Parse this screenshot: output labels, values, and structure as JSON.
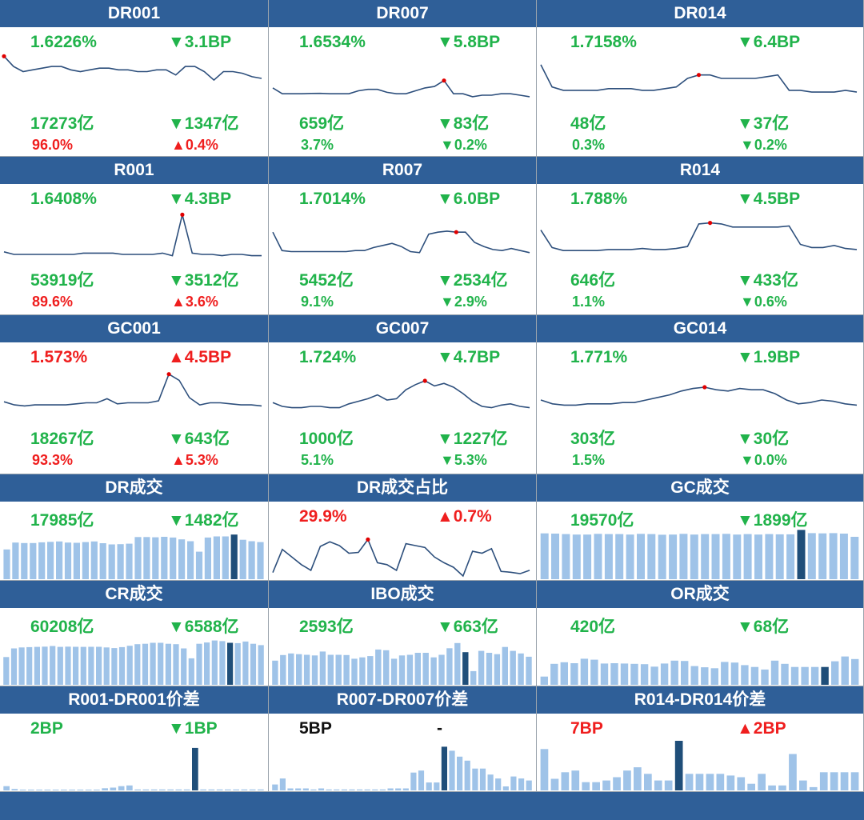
{
  "colors": {
    "header": "#2f5f98",
    "up": "#ef1e1e",
    "down": "#21b34b",
    "line": "#2d4f7c",
    "bar": "#9fc3e8",
    "bar_highlight": "#1f4e79",
    "marker": "#e00000"
  },
  "rate_panels": [
    {
      "title": "DR001",
      "rate": "1.6226%",
      "rate_color": "g",
      "change": "▼3.1BP",
      "change_color": "g",
      "volume": "17273亿",
      "vol_change": "▼1347亿",
      "vol_change_color": "g",
      "share": "96.0%",
      "share_color": "r",
      "share_change": "▲0.4%",
      "share_change_color": "r"
    },
    {
      "title": "DR007",
      "rate": "1.6534%",
      "rate_color": "g",
      "change": "▼5.8BP",
      "change_color": "g",
      "volume": "659亿",
      "vol_change": "▼83亿",
      "vol_change_color": "g",
      "share": "3.7%",
      "share_color": "g",
      "share_change": "▼0.2%",
      "share_change_color": "g"
    },
    {
      "title": "DR014",
      "rate": "1.7158%",
      "rate_color": "g",
      "change": "▼6.4BP",
      "change_color": "g",
      "volume": "48亿",
      "vol_change": "▼37亿",
      "vol_change_color": "g",
      "share": "0.3%",
      "share_color": "g",
      "share_change": "▼0.2%",
      "share_change_color": "g"
    },
    {
      "title": "R001",
      "rate": "1.6408%",
      "rate_color": "g",
      "change": "▼4.3BP",
      "change_color": "g",
      "volume": "53919亿",
      "vol_change": "▼3512亿",
      "vol_change_color": "g",
      "share": "89.6%",
      "share_color": "r",
      "share_change": "▲3.6%",
      "share_change_color": "r"
    },
    {
      "title": "R007",
      "rate": "1.7014%",
      "rate_color": "g",
      "change": "▼6.0BP",
      "change_color": "g",
      "volume": "5452亿",
      "vol_change": "▼2534亿",
      "vol_change_color": "g",
      "share": "9.1%",
      "share_color": "g",
      "share_change": "▼2.9%",
      "share_change_color": "g"
    },
    {
      "title": "R014",
      "rate": "1.788%",
      "rate_color": "g",
      "change": "▼4.5BP",
      "change_color": "g",
      "volume": "646亿",
      "vol_change": "▼433亿",
      "vol_change_color": "g",
      "share": "1.1%",
      "share_color": "g",
      "share_change": "▼0.6%",
      "share_change_color": "g"
    },
    {
      "title": "GC001",
      "rate": "1.573%",
      "rate_color": "r",
      "change": "▲4.5BP",
      "change_color": "r",
      "volume": "18267亿",
      "vol_change": "▼643亿",
      "vol_change_color": "g",
      "share": "93.3%",
      "share_color": "r",
      "share_change": "▲5.3%",
      "share_change_color": "r"
    },
    {
      "title": "GC007",
      "rate": "1.724%",
      "rate_color": "g",
      "change": "▼4.7BP",
      "change_color": "g",
      "volume": "1000亿",
      "vol_change": "▼1227亿",
      "vol_change_color": "g",
      "share": "5.1%",
      "share_color": "g",
      "share_change": "▼5.3%",
      "share_change_color": "g"
    },
    {
      "title": "GC014",
      "rate": "1.771%",
      "rate_color": "g",
      "change": "▼1.9BP",
      "change_color": "g",
      "volume": "303亿",
      "vol_change": "▼30亿",
      "vol_change_color": "g",
      "share": "1.5%",
      "share_color": "g",
      "share_change": "▼0.0%",
      "share_change_color": "g"
    }
  ],
  "volume_panels": [
    {
      "title": "DR成交",
      "value": "17985亿",
      "value_color": "g",
      "change": "▼1482亿",
      "change_color": "g"
    },
    {
      "title": "DR成交占比",
      "value": "29.9%",
      "value_color": "r",
      "change": "▲0.7%",
      "change_color": "r"
    },
    {
      "title": "GC成交",
      "value": "19570亿",
      "value_color": "g",
      "change": "▼1899亿",
      "change_color": "g"
    },
    {
      "title": "CR成交",
      "value": "60208亿",
      "value_color": "g",
      "change": "▼6588亿",
      "change_color": "g"
    },
    {
      "title": "IBO成交",
      "value": "2593亿",
      "value_color": "g",
      "change": "▼663亿",
      "change_color": "g"
    },
    {
      "title": "OR成交",
      "value": "420亿",
      "value_color": "g",
      "change": "▼68亿",
      "change_color": "g"
    },
    {
      "title": "R001-DR001价差",
      "value": "2BP",
      "value_color": "g",
      "change": "▼1BP",
      "change_color": "g"
    },
    {
      "title": "R007-DR007价差",
      "value": "5BP",
      "value_color": "k",
      "change": "-",
      "change_color": "k"
    },
    {
      "title": "R014-DR014价差",
      "value": "7BP",
      "value_color": "r",
      "change": "▲2BP",
      "change_color": "r"
    }
  ],
  "chart_data": [
    {
      "type": "line",
      "title": "DR001",
      "ylim": [
        1.5,
        1.8
      ],
      "values": [
        1.78,
        1.72,
        1.69,
        1.7,
        1.71,
        1.72,
        1.72,
        1.7,
        1.69,
        1.7,
        1.71,
        1.71,
        1.7,
        1.7,
        1.69,
        1.69,
        1.7,
        1.7,
        1.67,
        1.72,
        1.72,
        1.69,
        1.64,
        1.69,
        1.69,
        1.68,
        1.66,
        1.65
      ],
      "highlight_index": 0
    },
    {
      "type": "line",
      "title": "DR007",
      "ylim": [
        1.6,
        1.95
      ],
      "values": [
        1.71,
        1.67,
        1.67,
        1.67,
        1.672,
        1.673,
        1.67,
        1.67,
        1.67,
        1.69,
        1.7,
        1.7,
        1.68,
        1.67,
        1.67,
        1.69,
        1.71,
        1.72,
        1.76,
        1.67,
        1.67,
        1.65,
        1.66,
        1.66,
        1.67,
        1.67,
        1.66,
        1.65
      ],
      "highlight_index": 18
    },
    {
      "type": "line",
      "title": "DR014",
      "ylim": [
        1.65,
        1.95
      ],
      "values": [
        1.88,
        1.75,
        1.73,
        1.73,
        1.73,
        1.73,
        1.74,
        1.74,
        1.74,
        1.73,
        1.73,
        1.74,
        1.75,
        1.8,
        1.82,
        1.82,
        1.8,
        1.8,
        1.8,
        1.8,
        1.81,
        1.82,
        1.73,
        1.73,
        1.72,
        1.72,
        1.72,
        1.73,
        1.72
      ],
      "highlight_index": 14
    },
    {
      "type": "line",
      "title": "R001",
      "ylim": [
        1.6,
        2.0
      ],
      "values": [
        1.67,
        1.65,
        1.65,
        1.65,
        1.65,
        1.65,
        1.65,
        1.65,
        1.66,
        1.66,
        1.66,
        1.66,
        1.65,
        1.65,
        1.65,
        1.65,
        1.66,
        1.64,
        1.96,
        1.66,
        1.65,
        1.65,
        1.64,
        1.65,
        1.65,
        1.64,
        1.64
      ],
      "highlight_index": 18
    },
    {
      "type": "line",
      "title": "R007",
      "ylim": [
        1.6,
        2.1
      ],
      "values": [
        1.88,
        1.7,
        1.69,
        1.69,
        1.69,
        1.69,
        1.69,
        1.69,
        1.69,
        1.7,
        1.7,
        1.73,
        1.75,
        1.77,
        1.74,
        1.69,
        1.68,
        1.86,
        1.88,
        1.89,
        1.88,
        1.88,
        1.78,
        1.74,
        1.71,
        1.7,
        1.72,
        1.7,
        1.68
      ],
      "highlight_index": 20
    },
    {
      "type": "line",
      "title": "R014",
      "ylim": [
        1.6,
        2.1
      ],
      "values": [
        1.9,
        1.73,
        1.7,
        1.7,
        1.7,
        1.7,
        1.71,
        1.71,
        1.71,
        1.72,
        1.71,
        1.71,
        1.72,
        1.74,
        1.96,
        1.97,
        1.96,
        1.93,
        1.93,
        1.93,
        1.93,
        1.93,
        1.94,
        1.76,
        1.73,
        1.73,
        1.75,
        1.72,
        1.71
      ],
      "highlight_index": 15
    },
    {
      "type": "line",
      "title": "GC001",
      "ylim": [
        1.5,
        2.0
      ],
      "values": [
        1.67,
        1.64,
        1.63,
        1.64,
        1.64,
        1.64,
        1.64,
        1.65,
        1.66,
        1.66,
        1.7,
        1.65,
        1.66,
        1.66,
        1.66,
        1.68,
        1.94,
        1.88,
        1.71,
        1.64,
        1.66,
        1.66,
        1.65,
        1.64,
        1.64,
        1.63
      ],
      "highlight_index": 16
    },
    {
      "type": "line",
      "title": "GC007",
      "ylim": [
        1.6,
        2.0
      ],
      "values": [
        1.73,
        1.7,
        1.69,
        1.69,
        1.7,
        1.7,
        1.69,
        1.69,
        1.72,
        1.74,
        1.76,
        1.79,
        1.75,
        1.76,
        1.83,
        1.87,
        1.9,
        1.86,
        1.88,
        1.85,
        1.8,
        1.74,
        1.7,
        1.69,
        1.71,
        1.72,
        1.7,
        1.69
      ],
      "highlight_index": 16
    },
    {
      "type": "line",
      "title": "GC014",
      "ylim": [
        1.6,
        2.0
      ],
      "values": [
        1.75,
        1.72,
        1.71,
        1.71,
        1.72,
        1.72,
        1.72,
        1.73,
        1.73,
        1.75,
        1.77,
        1.79,
        1.82,
        1.84,
        1.85,
        1.83,
        1.82,
        1.84,
        1.83,
        1.83,
        1.8,
        1.75,
        1.72,
        1.73,
        1.75,
        1.74,
        1.72,
        1.71
      ],
      "highlight_index": 14
    },
    {
      "type": "bar",
      "title": "DR成交",
      "ylim": [
        0,
        22000
      ],
      "values": [
        13000,
        16000,
        15800,
        15800,
        16100,
        16300,
        16500,
        16000,
        15900,
        16200,
        16500,
        15700,
        15200,
        15300,
        15500,
        18400,
        18400,
        18300,
        18500,
        18200,
        17400,
        16600,
        12000,
        18200,
        18700,
        18700,
        19500,
        17200,
        16600,
        16200
      ],
      "highlight_index": 26
    },
    {
      "type": "line",
      "title": "DR成交占比",
      "ylim": [
        26,
        38
      ],
      "values": [
        26.9,
        33.0,
        31.0,
        29.0,
        27.5,
        33.8,
        35.0,
        34.0,
        32.0,
        32.2,
        35.6,
        29.5,
        29.0,
        27.5,
        34.5,
        34.0,
        33.5,
        31.0,
        29.5,
        28.3,
        26.0,
        32.5,
        32.0,
        33.2,
        27.2,
        27.0,
        26.6,
        27.5
      ],
      "highlight_index": 10
    },
    {
      "type": "bar",
      "title": "GC成交",
      "ylim": [
        0,
        22000
      ],
      "values": [
        20000,
        19900,
        19700,
        19500,
        19500,
        19800,
        19700,
        19700,
        19500,
        19800,
        19700,
        19400,
        19500,
        19800,
        19500,
        19700,
        19700,
        19800,
        19500,
        19700,
        19500,
        19700,
        19600,
        19600,
        21500,
        20100,
        20000,
        20100,
        19900,
        18500
      ],
      "highlight_index": 24
    },
    {
      "type": "bar",
      "title": "CR成交",
      "ylim": [
        0,
        75000
      ],
      "values": [
        42000,
        55000,
        56500,
        57000,
        57300,
        57700,
        58700,
        57300,
        57700,
        57500,
        57300,
        57500,
        57500,
        56500,
        55500,
        57000,
        59000,
        61500,
        62000,
        63500,
        63500,
        62000,
        61500,
        55000,
        40000,
        62000,
        64000,
        67000,
        66000,
        63500,
        63000,
        65500,
        62000,
        60000
      ],
      "highlight_index": 29
    },
    {
      "type": "bar",
      "title": "IBO成交",
      "ylim": [
        0,
        3800
      ],
      "values": [
        1850,
        2280,
        2400,
        2350,
        2300,
        2250,
        2550,
        2300,
        2300,
        2280,
        2000,
        2100,
        2200,
        2700,
        2650,
        2000,
        2250,
        2300,
        2450,
        2450,
        2100,
        2300,
        2800,
        3200,
        2500,
        1050,
        2600,
        2450,
        2350,
        2900,
        2600,
        2400,
        2150
      ],
      "highlight_index": 24
    },
    {
      "type": "bar",
      "title": "OR成交",
      "ylim": [
        0,
        780
      ],
      "values": [
        130,
        330,
        355,
        340,
        410,
        395,
        335,
        340,
        335,
        330,
        325,
        285,
        335,
        380,
        375,
        295,
        275,
        260,
        360,
        350,
        310,
        280,
        240,
        380,
        330,
        280,
        280,
        280,
        280,
        370,
        445,
        405
      ],
      "highlight_index": 28
    },
    {
      "type": "bar",
      "title": "R001-DR001价差",
      "ylim": [
        0,
        35
      ],
      "values": [
        3,
        1,
        0.5,
        0.5,
        0.5,
        0.5,
        0.5,
        0.5,
        0.5,
        0.5,
        0.5,
        0.5,
        1.5,
        2,
        3,
        3.5,
        0.7,
        0.7,
        0.7,
        0.7,
        0.7,
        0.7,
        0.7,
        30,
        0.7,
        0.7,
        0.7,
        0.7,
        0.7,
        0.7,
        0.7,
        0.7
      ],
      "highlight_index": 23
    },
    {
      "type": "bar",
      "title": "R007-DR007价差",
      "ylim": [
        0,
        25
      ],
      "values": [
        3,
        6,
        1,
        1,
        1,
        0.5,
        1,
        0.5,
        0.5,
        0.5,
        0.5,
        0.5,
        0.5,
        0.5,
        0.5,
        1,
        1,
        1,
        9,
        10,
        4,
        4,
        22,
        20,
        17,
        15,
        11,
        11,
        8,
        6,
        2,
        7,
        6,
        5
      ],
      "highlight_index": 22
    },
    {
      "type": "bar",
      "title": "R014-DR014价差",
      "ylim": [
        0,
        30
      ],
      "values": [
        25,
        7,
        11,
        12,
        5,
        5,
        6,
        8,
        12,
        14,
        10,
        6,
        6,
        30,
        10,
        10,
        10,
        10,
        9,
        8,
        4,
        10,
        3,
        3,
        22,
        6,
        2,
        11,
        11,
        11,
        11
      ],
      "highlight_index": 13
    }
  ]
}
